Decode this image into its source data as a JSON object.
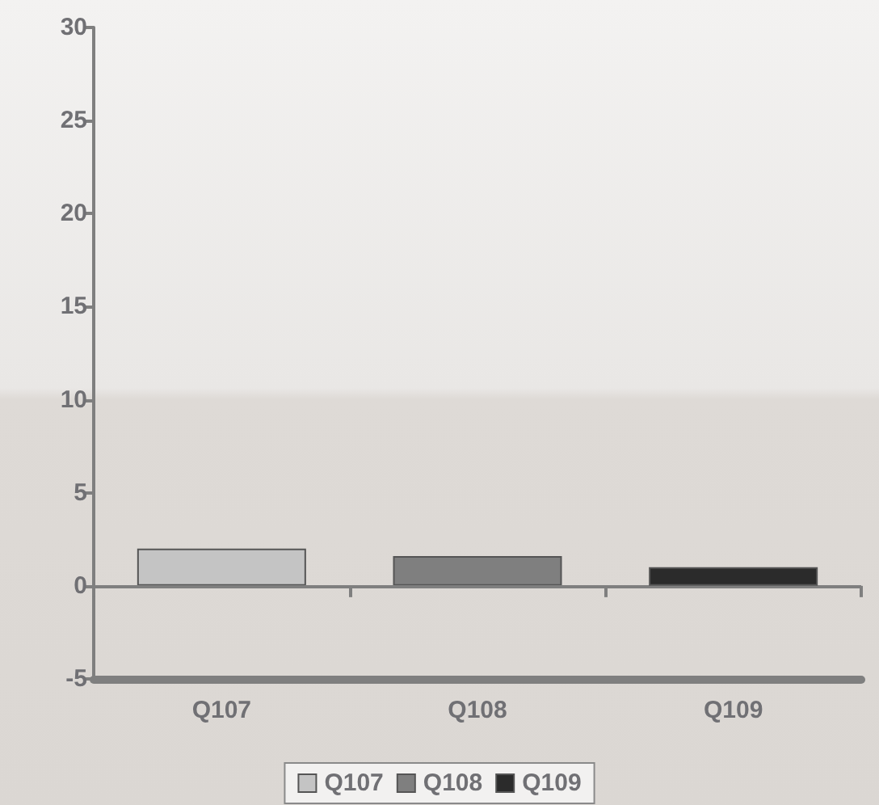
{
  "chart_data": {
    "type": "bar",
    "categories": [
      "Q107",
      "Q108",
      "Q109"
    ],
    "series": [
      {
        "name": "Q107",
        "color": "#c4c4c4",
        "values": [
          2.0,
          null,
          null
        ]
      },
      {
        "name": "Q108",
        "color": "#7f7f7f",
        "values": [
          null,
          1.6,
          null
        ]
      },
      {
        "name": "Q109",
        "color": "#2b2b2b",
        "values": [
          null,
          null,
          1.0
        ]
      }
    ],
    "ylim": [
      -5,
      30
    ],
    "yticks": [
      -5,
      0,
      5,
      10,
      15,
      20,
      25,
      30
    ],
    "grid": false,
    "legend": "bottom",
    "ref_lines": [
      {
        "axis": "y",
        "value": 0,
        "color": "#7f7f7f",
        "line_style": "solid"
      }
    ]
  }
}
